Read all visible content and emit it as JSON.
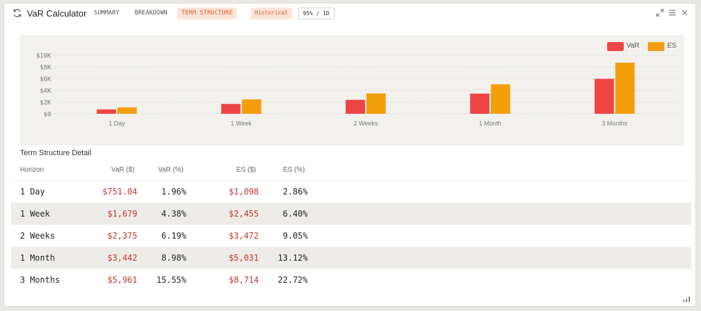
{
  "header": {
    "title": "VaR Calculator",
    "tabs": [
      {
        "label": "SUMMARY",
        "active": false
      },
      {
        "label": "BREAKDOWN",
        "active": false
      },
      {
        "label": "TERM STRUCTURE",
        "active": true
      }
    ],
    "method": "Historical",
    "confidence": "95% / 1D",
    "icons": [
      "refresh-icon",
      "expand-icon",
      "menu-icon",
      "close-icon"
    ]
  },
  "colors": {
    "var": "#ef4444",
    "es": "#f59e0b",
    "accent": "#e05a2b",
    "value_red": "#c0392b"
  },
  "chart_data": {
    "type": "bar",
    "categories": [
      "1 Day",
      "1 Week",
      "2 Weeks",
      "1 Month",
      "3 Months"
    ],
    "series": [
      {
        "name": "VaR",
        "values": [
          751.04,
          1679,
          2375,
          3442,
          5961
        ]
      },
      {
        "name": "ES",
        "values": [
          1098,
          2455,
          3472,
          5031,
          8714
        ]
      }
    ],
    "yticks": [
      "$0",
      "$2K",
      "$4K",
      "$6K",
      "$8K",
      "$10K"
    ],
    "ylim": [
      0,
      10000
    ],
    "grid": true,
    "legend": "top-right"
  },
  "table": {
    "title": "Term Structure Detail",
    "columns": [
      "Horizon",
      "VaR ($)",
      "VaR (%)",
      "ES ($)",
      "ES (%)"
    ],
    "rows": [
      [
        "1 Day",
        "$751.04",
        "1.96%",
        "$1,098",
        "2.86%"
      ],
      [
        "1 Week",
        "$1,679",
        "4.38%",
        "$2,455",
        "6.40%"
      ],
      [
        "2 Weeks",
        "$2,375",
        "6.19%",
        "$3,472",
        "9.05%"
      ],
      [
        "1 Month",
        "$3,442",
        "8.98%",
        "$5,031",
        "13.12%"
      ],
      [
        "3 Months",
        "$5,961",
        "15.55%",
        "$8,714",
        "22.72%"
      ]
    ]
  }
}
